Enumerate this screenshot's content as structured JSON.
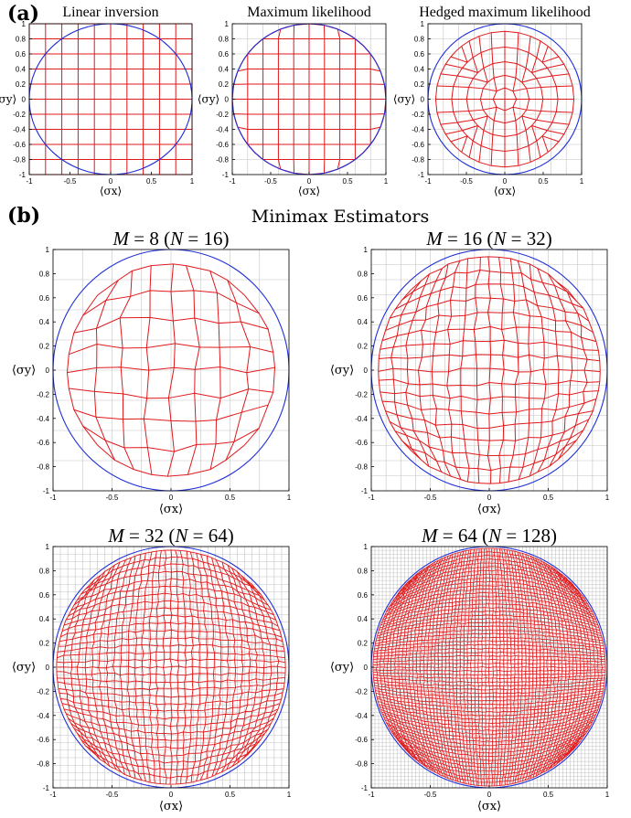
{
  "figure": {
    "panel_a_label": "(a)",
    "panel_b_label": "(b)",
    "panel_b_title": "Minimax Estimators"
  },
  "colors": {
    "circle": "#1f2fd8",
    "estimator_grid": "#e0191c",
    "reference_grid": "#c4c4c4",
    "axes": "#000000"
  },
  "chart_data": [
    {
      "id": "linear",
      "type": "line",
      "panel": "a",
      "title": "Linear inversion",
      "xlabel": "⟨σx⟩",
      "ylabel": "⟨σy⟩",
      "xlim": [
        -1,
        1
      ],
      "ylim": [
        -1,
        1
      ],
      "x_ticks": [
        "-1",
        "-0.5",
        "0",
        "0.5",
        "1"
      ],
      "y_ticks": [
        "-1",
        "-0.8",
        "-0.6",
        "-0.4",
        "-0.2",
        "0",
        "0.2",
        "0.4",
        "0.6",
        "0.8",
        "1"
      ],
      "grid": true,
      "grid_lines": 11,
      "mapping": "identity",
      "circle_radius": 1
    },
    {
      "id": "ml",
      "type": "line",
      "panel": "a",
      "title": "Maximum likelihood",
      "xlabel": "⟨σx⟩",
      "ylabel": "⟨σy⟩",
      "xlim": [
        -1,
        1
      ],
      "ylim": [
        -1,
        1
      ],
      "x_ticks": [
        "-1",
        "-0.5",
        "0",
        "0.5",
        "1"
      ],
      "y_ticks": [
        "-1",
        "-0.8",
        "-0.6",
        "-0.4",
        "-0.2",
        "0",
        "0.2",
        "0.4",
        "0.6",
        "0.8",
        "1"
      ],
      "grid": true,
      "grid_lines": 11,
      "mapping": "project_to_disk",
      "circle_radius": 1
    },
    {
      "id": "hml",
      "type": "line",
      "panel": "a",
      "title": "Hedged maximum likelihood",
      "xlabel": "⟨σx⟩",
      "ylabel": "⟨σy⟩",
      "xlim": [
        -1,
        1
      ],
      "ylim": [
        -1,
        1
      ],
      "x_ticks": [
        "-1",
        "-0.5",
        "0",
        "0.5",
        "1"
      ],
      "y_ticks": [
        "-1",
        "-0.8",
        "-0.6",
        "-0.4",
        "-0.2",
        "0",
        "0.2",
        "0.4",
        "0.6",
        "0.8",
        "1"
      ],
      "grid": true,
      "grid_lines": 11,
      "mapping": "shrink_to_disk",
      "shrink_radius": 0.9,
      "circle_radius": 1
    },
    {
      "id": "m8",
      "type": "line",
      "panel": "b",
      "title": "M = 8 (N = 16)",
      "title_parts": {
        "m_var": "M",
        "m_val": " = 8 (",
        "n_var": "N",
        "n_val": " = 16)"
      },
      "xlabel": "⟨σx⟩",
      "ylabel": "⟨σy⟩",
      "xlim": [
        -1,
        1
      ],
      "ylim": [
        -1,
        1
      ],
      "x_ticks": [
        "-1",
        "-0.5",
        "0",
        "0.5",
        "1"
      ],
      "y_ticks": [
        "-1",
        "-0.8",
        "-0.6",
        "-0.4",
        "-0.2",
        "0",
        "0.2",
        "0.4",
        "0.6",
        "0.8",
        "1"
      ],
      "grid": true,
      "M": 8,
      "N": 16,
      "grid_lines": 9,
      "shrink_radius": 0.88,
      "mapping": "minimax",
      "circle_radius": 1
    },
    {
      "id": "m16",
      "type": "line",
      "panel": "b",
      "title": "M = 16 (N = 32)",
      "title_parts": {
        "m_var": "M",
        "m_val": " = 16 (",
        "n_var": "N",
        "n_val": " = 32)"
      },
      "xlabel": "⟨σx⟩",
      "ylabel": "⟨σy⟩",
      "xlim": [
        -1,
        1
      ],
      "ylim": [
        -1,
        1
      ],
      "x_ticks": [
        "-1",
        "-0.5",
        "0",
        "0.5",
        "1"
      ],
      "y_ticks": [
        "-1",
        "-0.8",
        "-0.6",
        "-0.4",
        "-0.2",
        "0",
        "0.2",
        "0.4",
        "0.6",
        "0.8",
        "1"
      ],
      "grid": true,
      "M": 16,
      "N": 32,
      "grid_lines": 17,
      "shrink_radius": 0.94,
      "mapping": "minimax",
      "circle_radius": 1
    },
    {
      "id": "m32",
      "type": "line",
      "panel": "b",
      "title": "M = 32 (N = 64)",
      "title_parts": {
        "m_var": "M",
        "m_val": " = 32 (",
        "n_var": "N",
        "n_val": " = 64)"
      },
      "xlabel": "⟨σx⟩",
      "ylabel": "⟨σy⟩",
      "xlim": [
        -1,
        1
      ],
      "ylim": [
        -1,
        1
      ],
      "x_ticks": [
        "-1",
        "-0.5",
        "0",
        "0.5",
        "1"
      ],
      "y_ticks": [
        "-1",
        "-0.8",
        "-0.6",
        "-0.4",
        "-0.2",
        "0",
        "0.2",
        "0.4",
        "0.6",
        "0.8",
        "1"
      ],
      "grid": true,
      "M": 32,
      "N": 64,
      "grid_lines": 33,
      "shrink_radius": 0.97,
      "mapping": "minimax",
      "circle_radius": 1
    },
    {
      "id": "m64",
      "type": "line",
      "panel": "b",
      "title": "M = 64 (N = 128)",
      "title_parts": {
        "m_var": "M",
        "m_val": " = 64 (",
        "n_var": "N",
        "n_val": " = 128)"
      },
      "xlabel": "⟨σx⟩",
      "ylabel": "⟨σy⟩",
      "xlim": [
        -1,
        1
      ],
      "ylim": [
        -1,
        1
      ],
      "x_ticks": [
        "-1",
        "-0.5",
        "0",
        "0.5",
        "1"
      ],
      "y_ticks": [
        "-1",
        "-0.8",
        "-0.6",
        "-0.4",
        "-0.2",
        "0",
        "0.2",
        "0.4",
        "0.6",
        "0.8",
        "1"
      ],
      "grid": true,
      "M": 64,
      "N": 128,
      "grid_lines": 65,
      "shrink_radius": 0.985,
      "mapping": "minimax",
      "circle_radius": 1
    }
  ]
}
